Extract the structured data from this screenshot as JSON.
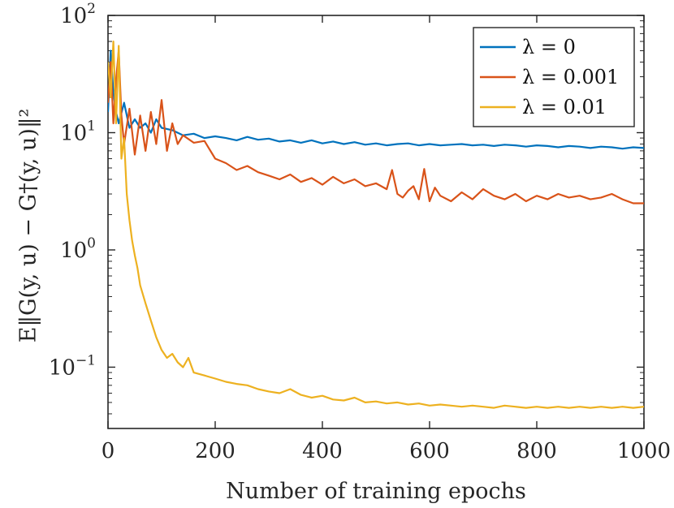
{
  "chart_data": {
    "type": "line",
    "title": "",
    "xlabel": "Number of training epochs",
    "ylabel": "E‖G(y, u) − G†(y, u)‖²",
    "xlim": [
      0,
      1000
    ],
    "ylim": [
      0.03,
      100
    ],
    "yscale": "log",
    "legend_position": "top-right",
    "x_ticks": [
      {
        "value": 0,
        "label": "0"
      },
      {
        "value": 200,
        "label": "200"
      },
      {
        "value": 400,
        "label": "400"
      },
      {
        "value": 600,
        "label": "600"
      },
      {
        "value": 800,
        "label": "800"
      },
      {
        "value": 1000,
        "label": "1000"
      }
    ],
    "y_ticks": [
      {
        "value": 100,
        "base": "10",
        "exp": "2"
      },
      {
        "value": 10,
        "base": "10",
        "exp": "1"
      },
      {
        "value": 1,
        "base": "10",
        "exp": "0"
      },
      {
        "value": 0.1,
        "base": "10",
        "exp": "−1"
      }
    ],
    "series": [
      {
        "name": "λ = 0",
        "color": "#0072BD",
        "x": [
          0,
          5,
          10,
          15,
          20,
          30,
          40,
          50,
          60,
          70,
          80,
          90,
          100,
          120,
          140,
          160,
          180,
          200,
          220,
          240,
          260,
          280,
          300,
          320,
          340,
          360,
          380,
          400,
          420,
          440,
          460,
          480,
          500,
          520,
          540,
          560,
          580,
          600,
          620,
          640,
          660,
          680,
          700,
          720,
          740,
          760,
          780,
          800,
          820,
          840,
          860,
          880,
          900,
          920,
          940,
          960,
          980,
          1000
        ],
        "values": [
          15,
          50,
          22,
          15,
          12,
          18,
          11,
          13,
          11,
          12,
          10,
          13,
          11,
          10.5,
          9.5,
          9.8,
          9,
          9.3,
          9,
          8.6,
          9.2,
          8.7,
          8.9,
          8.4,
          8.6,
          8.2,
          8.6,
          8.1,
          8.4,
          8.0,
          8.3,
          7.9,
          8.1,
          7.8,
          8.0,
          8.1,
          7.8,
          8.0,
          7.8,
          7.9,
          8.0,
          7.8,
          7.9,
          7.7,
          7.9,
          7.8,
          7.6,
          7.8,
          7.7,
          7.5,
          7.7,
          7.6,
          7.4,
          7.6,
          7.5,
          7.3,
          7.5,
          7.4
        ]
      },
      {
        "name": "λ = 0.001",
        "color": "#D95319",
        "x": [
          0,
          5,
          10,
          15,
          20,
          25,
          30,
          40,
          50,
          60,
          70,
          80,
          90,
          100,
          110,
          120,
          130,
          140,
          160,
          180,
          200,
          220,
          240,
          260,
          280,
          300,
          320,
          340,
          360,
          380,
          400,
          420,
          440,
          460,
          480,
          500,
          520,
          530,
          540,
          550,
          560,
          570,
          580,
          590,
          600,
          610,
          620,
          640,
          660,
          680,
          700,
          720,
          740,
          760,
          780,
          800,
          820,
          840,
          860,
          880,
          900,
          920,
          940,
          960,
          980,
          1000
        ],
        "values": [
          18,
          40,
          12,
          28,
          50,
          14,
          8,
          16,
          6.5,
          14,
          7,
          15,
          8,
          19,
          7,
          12,
          8,
          9.5,
          8.2,
          8.5,
          6.0,
          5.5,
          4.8,
          5.2,
          4.6,
          4.3,
          4.0,
          4.4,
          3.8,
          4.1,
          3.6,
          4.2,
          3.7,
          4.0,
          3.5,
          3.7,
          3.3,
          4.8,
          3.0,
          2.8,
          3.2,
          3.5,
          2.7,
          4.9,
          2.6,
          3.4,
          2.9,
          2.6,
          3.1,
          2.7,
          3.3,
          2.9,
          2.7,
          3.0,
          2.6,
          2.9,
          2.7,
          3.0,
          2.8,
          2.9,
          2.7,
          2.8,
          3.0,
          2.7,
          2.5,
          2.5
        ]
      },
      {
        "name": "λ = 0.01",
        "color": "#EDB120",
        "x": [
          0,
          5,
          10,
          15,
          20,
          25,
          30,
          35,
          40,
          45,
          50,
          55,
          60,
          70,
          80,
          90,
          100,
          110,
          120,
          130,
          140,
          150,
          160,
          180,
          200,
          220,
          240,
          260,
          280,
          300,
          320,
          340,
          360,
          380,
          400,
          420,
          440,
          460,
          480,
          500,
          520,
          540,
          560,
          580,
          600,
          620,
          640,
          660,
          680,
          700,
          720,
          740,
          760,
          780,
          800,
          820,
          840,
          860,
          880,
          900,
          920,
          940,
          960,
          980,
          1000
        ],
        "values": [
          40,
          20,
          60,
          12,
          55,
          6,
          9,
          3,
          1.8,
          1.2,
          0.9,
          0.7,
          0.5,
          0.35,
          0.25,
          0.18,
          0.14,
          0.12,
          0.13,
          0.11,
          0.1,
          0.12,
          0.09,
          0.085,
          0.08,
          0.075,
          0.072,
          0.07,
          0.065,
          0.062,
          0.06,
          0.065,
          0.058,
          0.055,
          0.057,
          0.053,
          0.052,
          0.055,
          0.05,
          0.051,
          0.049,
          0.05,
          0.048,
          0.049,
          0.047,
          0.048,
          0.047,
          0.046,
          0.047,
          0.046,
          0.045,
          0.047,
          0.046,
          0.045,
          0.046,
          0.045,
          0.046,
          0.045,
          0.046,
          0.045,
          0.046,
          0.045,
          0.046,
          0.045,
          0.046
        ]
      }
    ]
  }
}
